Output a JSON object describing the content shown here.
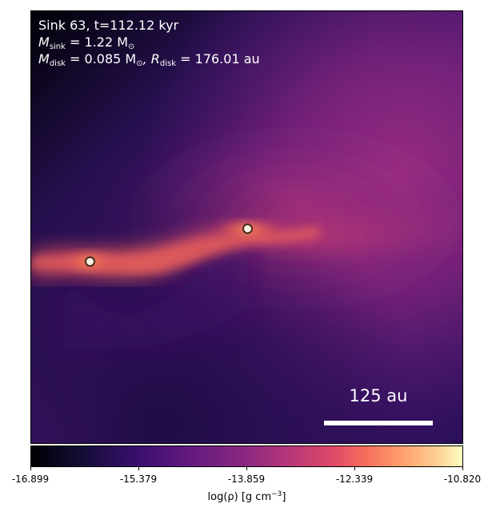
{
  "info": {
    "line1": "Sink 63, t=112.12 kyr",
    "m_sink_label": "M",
    "m_sink_sub": "sink",
    "m_sink_value": " = 1.22 M",
    "m_sun_sub": "⊙",
    "m_disk_label": "M",
    "m_disk_sub": "disk",
    "m_disk_value": " = 0.085 M",
    "m_disk_sun_sub": "⊙",
    "r_disk_label": ", R",
    "r_disk_sub": "disk",
    "r_disk_value": " = 176.01 au"
  },
  "scale": {
    "label": "125 au"
  },
  "colorbar": {
    "colormap": "inferno",
    "min": -16.899,
    "max": -10.82,
    "ticks": [
      "-16.899",
      "-15.379",
      "-13.859",
      "-12.339",
      "-10.820"
    ],
    "label_main": "log(ρ) [g cm",
    "label_exp": "−3",
    "label_end": "]"
  },
  "sinks": [
    {
      "name": "sink-left"
    },
    {
      "name": "sink-center"
    }
  ]
}
